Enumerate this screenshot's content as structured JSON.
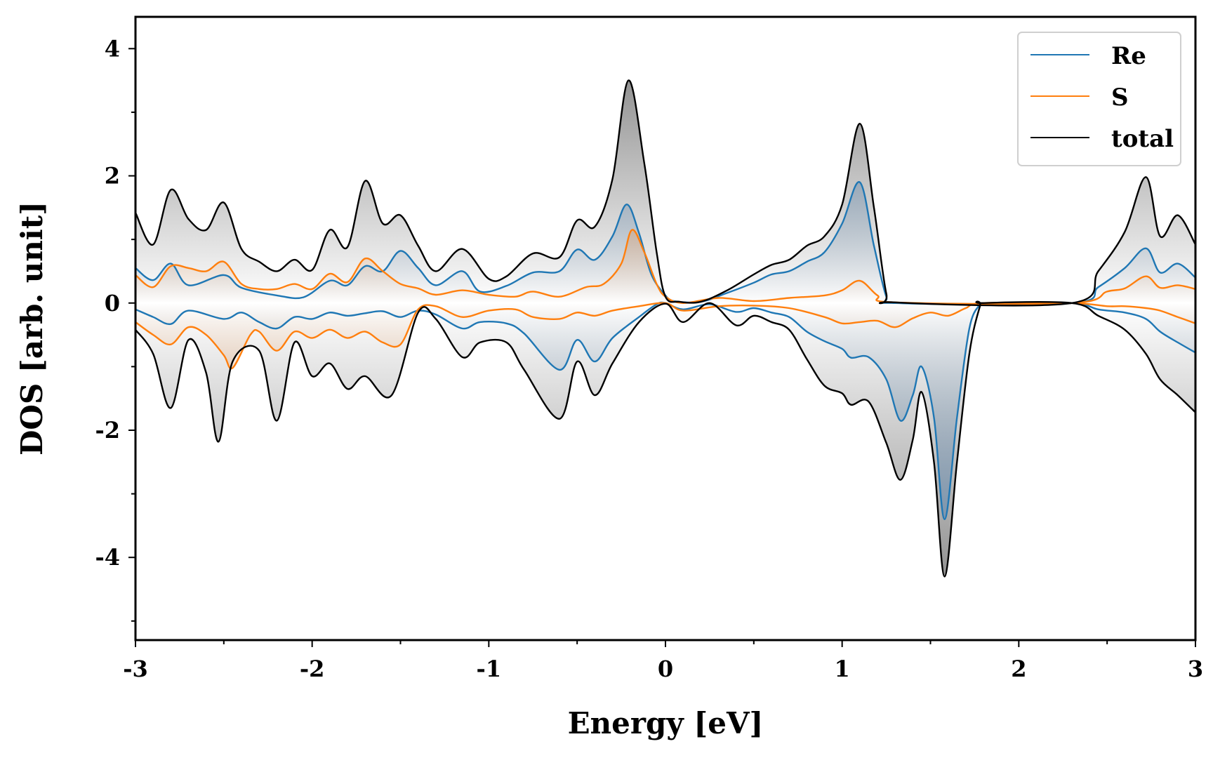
{
  "chart_data": {
    "type": "line",
    "title": "",
    "xlabel": "Energy [eV]",
    "ylabel": "DOS [arb. unit]",
    "xlim": [
      -3,
      3
    ],
    "ylim": [
      -5.3,
      4.5
    ],
    "xticks": [
      -3,
      -2,
      -1,
      0,
      1,
      2,
      3
    ],
    "xtick_labels": [
      "-3",
      "-2",
      "-1",
      "0",
      "1",
      "2",
      "3"
    ],
    "yticks": [
      -4,
      -2,
      0,
      2,
      4
    ],
    "ytick_labels": [
      "-4",
      "-2",
      "0",
      "2",
      "4"
    ],
    "legend_position": "top-right",
    "series": [
      {
        "name": "Re",
        "color": "#1f77b4",
        "fill_color": "#6f8fae",
        "up": [
          [
            -3,
            0.55
          ],
          [
            -2.9,
            0.36
          ],
          [
            -2.8,
            0.62
          ],
          [
            -2.7,
            0.28
          ],
          [
            -2.5,
            0.44
          ],
          [
            -2.4,
            0.24
          ],
          [
            -2.2,
            0.12
          ],
          [
            -2.05,
            0.09
          ],
          [
            -1.9,
            0.35
          ],
          [
            -1.8,
            0.28
          ],
          [
            -1.7,
            0.58
          ],
          [
            -1.6,
            0.5
          ],
          [
            -1.5,
            0.82
          ],
          [
            -1.4,
            0.55
          ],
          [
            -1.3,
            0.28
          ],
          [
            -1.15,
            0.5
          ],
          [
            -1.05,
            0.18
          ],
          [
            -0.9,
            0.27
          ],
          [
            -0.75,
            0.48
          ],
          [
            -0.6,
            0.5
          ],
          [
            -0.5,
            0.84
          ],
          [
            -0.4,
            0.68
          ],
          [
            -0.3,
            1.05
          ],
          [
            -0.22,
            1.55
          ],
          [
            -0.15,
            1.1
          ],
          [
            -0.08,
            0.45
          ],
          [
            0,
            0.12
          ],
          [
            0.05,
            0.03
          ],
          [
            0.2,
            0.02
          ],
          [
            0.35,
            0.16
          ],
          [
            0.5,
            0.32
          ],
          [
            0.6,
            0.45
          ],
          [
            0.7,
            0.5
          ],
          [
            0.8,
            0.65
          ],
          [
            0.9,
            0.8
          ],
          [
            1,
            1.25
          ],
          [
            1.1,
            1.9
          ],
          [
            1.18,
            0.9
          ],
          [
            1.25,
            0.1
          ],
          [
            1.3,
            0
          ],
          [
            2.3,
            0
          ],
          [
            2.45,
            0.25
          ],
          [
            2.6,
            0.55
          ],
          [
            2.72,
            0.86
          ],
          [
            2.8,
            0.48
          ],
          [
            2.9,
            0.62
          ],
          [
            3,
            0.4
          ]
        ],
        "down": [
          [
            -3,
            -0.1
          ],
          [
            -2.9,
            -0.22
          ],
          [
            -2.8,
            -0.33
          ],
          [
            -2.7,
            -0.12
          ],
          [
            -2.5,
            -0.25
          ],
          [
            -2.4,
            -0.15
          ],
          [
            -2.3,
            -0.3
          ],
          [
            -2.2,
            -0.4
          ],
          [
            -2.1,
            -0.22
          ],
          [
            -2,
            -0.25
          ],
          [
            -1.9,
            -0.15
          ],
          [
            -1.8,
            -0.2
          ],
          [
            -1.7,
            -0.16
          ],
          [
            -1.6,
            -0.13
          ],
          [
            -1.5,
            -0.22
          ],
          [
            -1.4,
            -0.12
          ],
          [
            -1.3,
            -0.18
          ],
          [
            -1.15,
            -0.4
          ],
          [
            -1.05,
            -0.3
          ],
          [
            -0.9,
            -0.32
          ],
          [
            -0.8,
            -0.48
          ],
          [
            -0.6,
            -1.05
          ],
          [
            -0.5,
            -0.58
          ],
          [
            -0.4,
            -0.92
          ],
          [
            -0.3,
            -0.55
          ],
          [
            -0.15,
            -0.22
          ],
          [
            -0.05,
            -0.02
          ],
          [
            0,
            0
          ],
          [
            0.1,
            -0.1
          ],
          [
            0.25,
            -0.02
          ],
          [
            0.4,
            -0.14
          ],
          [
            0.5,
            -0.08
          ],
          [
            0.6,
            -0.15
          ],
          [
            0.7,
            -0.22
          ],
          [
            0.8,
            -0.45
          ],
          [
            0.9,
            -0.6
          ],
          [
            1,
            -0.72
          ],
          [
            1.05,
            -0.86
          ],
          [
            1.15,
            -0.85
          ],
          [
            1.25,
            -1.2
          ],
          [
            1.33,
            -1.85
          ],
          [
            1.4,
            -1.45
          ],
          [
            1.45,
            -1
          ],
          [
            1.52,
            -1.8
          ],
          [
            1.58,
            -3.4
          ],
          [
            1.65,
            -1.8
          ],
          [
            1.72,
            -0.4
          ],
          [
            1.78,
            -0.02
          ],
          [
            1.8,
            0
          ],
          [
            2.3,
            0
          ],
          [
            2.45,
            -0.1
          ],
          [
            2.6,
            -0.15
          ],
          [
            2.72,
            -0.25
          ],
          [
            2.8,
            -0.45
          ],
          [
            2.9,
            -0.62
          ],
          [
            3,
            -0.78
          ]
        ]
      },
      {
        "name": "S",
        "color": "#ff7f0e",
        "fill_color": "#e98a3c",
        "up": [
          [
            -3,
            0.44
          ],
          [
            -2.9,
            0.25
          ],
          [
            -2.8,
            0.58
          ],
          [
            -2.7,
            0.55
          ],
          [
            -2.6,
            0.5
          ],
          [
            -2.5,
            0.65
          ],
          [
            -2.4,
            0.3
          ],
          [
            -2.3,
            0.22
          ],
          [
            -2.2,
            0.22
          ],
          [
            -2.1,
            0.3
          ],
          [
            -2,
            0.22
          ],
          [
            -1.9,
            0.46
          ],
          [
            -1.8,
            0.33
          ],
          [
            -1.7,
            0.7
          ],
          [
            -1.6,
            0.5
          ],
          [
            -1.5,
            0.3
          ],
          [
            -1.4,
            0.23
          ],
          [
            -1.3,
            0.13
          ],
          [
            -1.15,
            0.2
          ],
          [
            -1,
            0.13
          ],
          [
            -0.85,
            0.1
          ],
          [
            -0.75,
            0.18
          ],
          [
            -0.6,
            0.1
          ],
          [
            -0.45,
            0.25
          ],
          [
            -0.35,
            0.3
          ],
          [
            -0.25,
            0.62
          ],
          [
            -0.19,
            1.15
          ],
          [
            -0.12,
            0.8
          ],
          [
            -0.05,
            0.3
          ],
          [
            0,
            0.1
          ],
          [
            0.1,
            0
          ],
          [
            0.3,
            0.08
          ],
          [
            0.5,
            0.03
          ],
          [
            0.7,
            0.08
          ],
          [
            0.9,
            0.12
          ],
          [
            1,
            0.2
          ],
          [
            1.1,
            0.35
          ],
          [
            1.2,
            0.12
          ],
          [
            1.3,
            0.01
          ],
          [
            2.3,
            0
          ],
          [
            2.5,
            0.18
          ],
          [
            2.6,
            0.23
          ],
          [
            2.72,
            0.42
          ],
          [
            2.8,
            0.24
          ],
          [
            2.9,
            0.28
          ],
          [
            3,
            0.22
          ]
        ],
        "down": [
          [
            -3,
            -0.3
          ],
          [
            -2.9,
            -0.5
          ],
          [
            -2.8,
            -0.65
          ],
          [
            -2.7,
            -0.38
          ],
          [
            -2.6,
            -0.5
          ],
          [
            -2.5,
            -0.82
          ],
          [
            -2.45,
            -1.02
          ],
          [
            -2.35,
            -0.5
          ],
          [
            -2.3,
            -0.45
          ],
          [
            -2.2,
            -0.75
          ],
          [
            -2.1,
            -0.45
          ],
          [
            -2,
            -0.55
          ],
          [
            -1.9,
            -0.42
          ],
          [
            -1.8,
            -0.55
          ],
          [
            -1.7,
            -0.45
          ],
          [
            -1.6,
            -0.62
          ],
          [
            -1.5,
            -0.65
          ],
          [
            -1.4,
            -0.1
          ],
          [
            -1.3,
            -0.05
          ],
          [
            -1.15,
            -0.22
          ],
          [
            -1,
            -0.12
          ],
          [
            -0.85,
            -0.1
          ],
          [
            -0.75,
            -0.22
          ],
          [
            -0.6,
            -0.25
          ],
          [
            -0.5,
            -0.15
          ],
          [
            -0.4,
            -0.2
          ],
          [
            -0.3,
            -0.12
          ],
          [
            -0.15,
            -0.05
          ],
          [
            0,
            0
          ],
          [
            0.1,
            -0.12
          ],
          [
            0.3,
            -0.05
          ],
          [
            0.5,
            -0.04
          ],
          [
            0.7,
            -0.08
          ],
          [
            0.9,
            -0.22
          ],
          [
            1,
            -0.32
          ],
          [
            1.1,
            -0.3
          ],
          [
            1.2,
            -0.28
          ],
          [
            1.3,
            -0.38
          ],
          [
            1.4,
            -0.24
          ],
          [
            1.5,
            -0.15
          ],
          [
            1.6,
            -0.2
          ],
          [
            1.7,
            -0.08
          ],
          [
            1.8,
            0
          ],
          [
            2.3,
            0
          ],
          [
            2.5,
            -0.05
          ],
          [
            2.6,
            -0.05
          ],
          [
            2.72,
            -0.08
          ],
          [
            2.8,
            -0.12
          ],
          [
            2.9,
            -0.22
          ],
          [
            3,
            -0.32
          ]
        ]
      },
      {
        "name": "total",
        "color": "#000000",
        "fill_color": "#8a8a8a",
        "up": [
          [
            -3,
            1.42
          ],
          [
            -2.9,
            0.92
          ],
          [
            -2.8,
            1.78
          ],
          [
            -2.7,
            1.32
          ],
          [
            -2.6,
            1.15
          ],
          [
            -2.5,
            1.58
          ],
          [
            -2.4,
            0.85
          ],
          [
            -2.3,
            0.65
          ],
          [
            -2.2,
            0.5
          ],
          [
            -2.1,
            0.68
          ],
          [
            -2,
            0.52
          ],
          [
            -1.9,
            1.15
          ],
          [
            -1.8,
            0.88
          ],
          [
            -1.7,
            1.92
          ],
          [
            -1.6,
            1.25
          ],
          [
            -1.5,
            1.38
          ],
          [
            -1.4,
            0.9
          ],
          [
            -1.3,
            0.5
          ],
          [
            -1.15,
            0.85
          ],
          [
            -1,
            0.38
          ],
          [
            -0.9,
            0.42
          ],
          [
            -0.75,
            0.78
          ],
          [
            -0.6,
            0.72
          ],
          [
            -0.5,
            1.3
          ],
          [
            -0.4,
            1.2
          ],
          [
            -0.3,
            1.95
          ],
          [
            -0.21,
            3.5
          ],
          [
            -0.12,
            2.2
          ],
          [
            -0.05,
            0.8
          ],
          [
            0,
            0.1
          ],
          [
            0.08,
            0.02
          ],
          [
            0.2,
            0.02
          ],
          [
            0.35,
            0.2
          ],
          [
            0.5,
            0.45
          ],
          [
            0.6,
            0.6
          ],
          [
            0.7,
            0.68
          ],
          [
            0.8,
            0.9
          ],
          [
            0.9,
            1.05
          ],
          [
            1,
            1.55
          ],
          [
            1.1,
            2.82
          ],
          [
            1.18,
            1.5
          ],
          [
            1.25,
            0.15
          ],
          [
            1.3,
            0.01
          ],
          [
            2.3,
            0
          ],
          [
            2.45,
            0.5
          ],
          [
            2.6,
            1.12
          ],
          [
            2.72,
            1.98
          ],
          [
            2.8,
            1.05
          ],
          [
            2.9,
            1.38
          ],
          [
            3,
            0.92
          ]
        ],
        "down": [
          [
            -3,
            -0.42
          ],
          [
            -2.9,
            -0.8
          ],
          [
            -2.8,
            -1.65
          ],
          [
            -2.7,
            -0.58
          ],
          [
            -2.6,
            -1.1
          ],
          [
            -2.53,
            -2.18
          ],
          [
            -2.45,
            -0.92
          ],
          [
            -2.3,
            -0.75
          ],
          [
            -2.2,
            -1.85
          ],
          [
            -2.1,
            -0.62
          ],
          [
            -2,
            -1.15
          ],
          [
            -1.9,
            -0.95
          ],
          [
            -1.8,
            -1.35
          ],
          [
            -1.7,
            -1.15
          ],
          [
            -1.55,
            -1.45
          ],
          [
            -1.4,
            -0.15
          ],
          [
            -1.3,
            -0.25
          ],
          [
            -1.15,
            -0.85
          ],
          [
            -1.05,
            -0.62
          ],
          [
            -0.9,
            -0.62
          ],
          [
            -0.8,
            -1.05
          ],
          [
            -0.6,
            -1.82
          ],
          [
            -0.5,
            -0.92
          ],
          [
            -0.4,
            -1.45
          ],
          [
            -0.3,
            -0.95
          ],
          [
            -0.15,
            -0.3
          ],
          [
            0,
            -0.01
          ],
          [
            0.1,
            -0.3
          ],
          [
            0.25,
            0
          ],
          [
            0.4,
            -0.35
          ],
          [
            0.5,
            -0.2
          ],
          [
            0.6,
            -0.3
          ],
          [
            0.7,
            -0.42
          ],
          [
            0.8,
            -0.88
          ],
          [
            0.9,
            -1.3
          ],
          [
            1,
            -1.42
          ],
          [
            1.05,
            -1.6
          ],
          [
            1.15,
            -1.55
          ],
          [
            1.25,
            -2.2
          ],
          [
            1.33,
            -2.78
          ],
          [
            1.4,
            -2.15
          ],
          [
            1.45,
            -1.4
          ],
          [
            1.52,
            -2.5
          ],
          [
            1.58,
            -4.3
          ],
          [
            1.65,
            -2.5
          ],
          [
            1.72,
            -0.8
          ],
          [
            1.78,
            -0.05
          ],
          [
            1.8,
            0
          ],
          [
            2.3,
            0
          ],
          [
            2.45,
            -0.2
          ],
          [
            2.6,
            -0.42
          ],
          [
            2.72,
            -0.8
          ],
          [
            2.8,
            -1.2
          ],
          [
            2.9,
            -1.45
          ],
          [
            3,
            -1.72
          ]
        ]
      }
    ]
  }
}
